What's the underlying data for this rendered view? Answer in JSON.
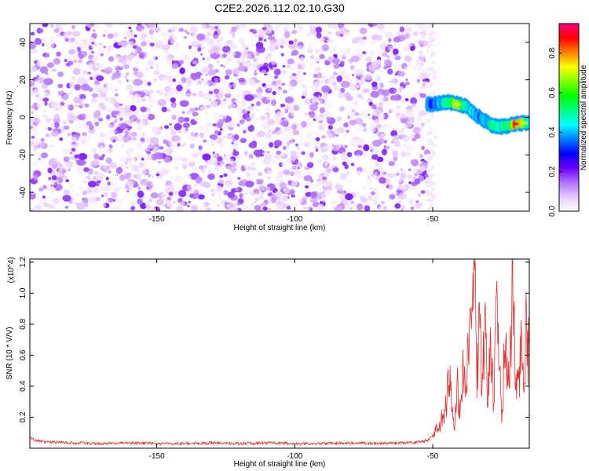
{
  "chart_data": [
    {
      "type": "heatmap",
      "title": "C2E2.2026.112.02.10.G30",
      "xlabel": "Height of straight line (km)",
      "ylabel": "Frequency (Hz)",
      "xlim": [
        -196,
        -15
      ],
      "ylim": [
        -50,
        50
      ],
      "xticks": [
        -150,
        -100,
        -50
      ],
      "yticks": [
        -40,
        -20,
        0,
        20,
        40
      ],
      "colorbar": {
        "label": "Normalized spectral amplitude",
        "range": [
          0.0,
          0.95
        ],
        "ticks": [
          0.0,
          0.2,
          0.4,
          0.6,
          0.8
        ],
        "colors": [
          "#ffffff",
          "#e6c8ff",
          "#b070ff",
          "#6a00ff",
          "#0000ff",
          "#0080ff",
          "#00ffff",
          "#00ff80",
          "#00ff00",
          "#80ff00",
          "#ffff00",
          "#ff8000",
          "#ff0000",
          "#ff0080"
        ]
      },
      "noise_region": {
        "x_range": [
          -196,
          -52
        ],
        "freq_range": [
          -50,
          50
        ],
        "amplitude_range": [
          0.02,
          0.2
        ]
      },
      "signal_track": {
        "width_hz": 3,
        "points": [
          {
            "x": -52,
            "freq": 7.0,
            "amp": 0.2
          },
          {
            "x": -48,
            "freq": 7.5,
            "amp": 0.45
          },
          {
            "x": -44,
            "freq": 8.0,
            "amp": 0.55
          },
          {
            "x": -41,
            "freq": 7.0,
            "amp": 0.75
          },
          {
            "x": -38,
            "freq": 6.0,
            "amp": 0.5
          },
          {
            "x": -35,
            "freq": 2.0,
            "amp": 0.45
          },
          {
            "x": -32,
            "freq": -1.0,
            "amp": 0.4
          },
          {
            "x": -29,
            "freq": -4.0,
            "amp": 0.55
          },
          {
            "x": -26,
            "freq": -5.0,
            "amp": 0.5
          },
          {
            "x": -23,
            "freq": -4.5,
            "amp": 0.55
          },
          {
            "x": -20,
            "freq": -3.5,
            "amp": 0.9
          },
          {
            "x": -17,
            "freq": -3.0,
            "amp": 0.7
          },
          {
            "x": -15,
            "freq": -3.0,
            "amp": 0.45
          }
        ]
      }
    },
    {
      "type": "line",
      "xlabel": "Height of straight line (km)",
      "ylabel": "SNR (10 * V/V)",
      "y_multiplier": "(x10^4)",
      "xlim": [
        -196,
        -15
      ],
      "ylim": [
        0.0,
        1.22
      ],
      "xticks": [
        -150,
        -100,
        -50
      ],
      "yticks": [
        0.2,
        0.4,
        0.6,
        0.8,
        1.0,
        1.2
      ],
      "line_color": "#e03030",
      "series": [
        {
          "name": "SNR",
          "baseline": 0.03,
          "x": [
            -196,
            -194,
            -190,
            -180,
            -170,
            -160,
            -150,
            -140,
            -130,
            -120,
            -110,
            -100,
            -90,
            -80,
            -70,
            -60,
            -55,
            -52,
            -50,
            -48,
            -46,
            -44,
            -43,
            -42,
            -41,
            -40,
            -39,
            -38,
            -37,
            -36,
            -35,
            -34,
            -33,
            -32,
            -31,
            -30,
            -29,
            -28,
            -27,
            -26,
            -25,
            -24,
            -23,
            -22,
            -21,
            -20,
            -19,
            -18,
            -17,
            -16,
            -15
          ],
          "y": [
            0.07,
            0.05,
            0.04,
            0.035,
            0.03,
            0.035,
            0.03,
            0.03,
            0.035,
            0.03,
            0.035,
            0.03,
            0.03,
            0.035,
            0.03,
            0.035,
            0.04,
            0.05,
            0.08,
            0.15,
            0.22,
            0.5,
            0.3,
            0.15,
            0.45,
            0.25,
            0.6,
            0.35,
            0.7,
            0.9,
            1.22,
            0.55,
            0.8,
            0.4,
            0.95,
            0.35,
            0.85,
            0.3,
            0.9,
            0.6,
            0.2,
            0.75,
            0.5,
            0.55,
            1.22,
            0.4,
            0.45,
            0.7,
            0.35,
            0.9,
            0.6
          ]
        }
      ]
    }
  ]
}
